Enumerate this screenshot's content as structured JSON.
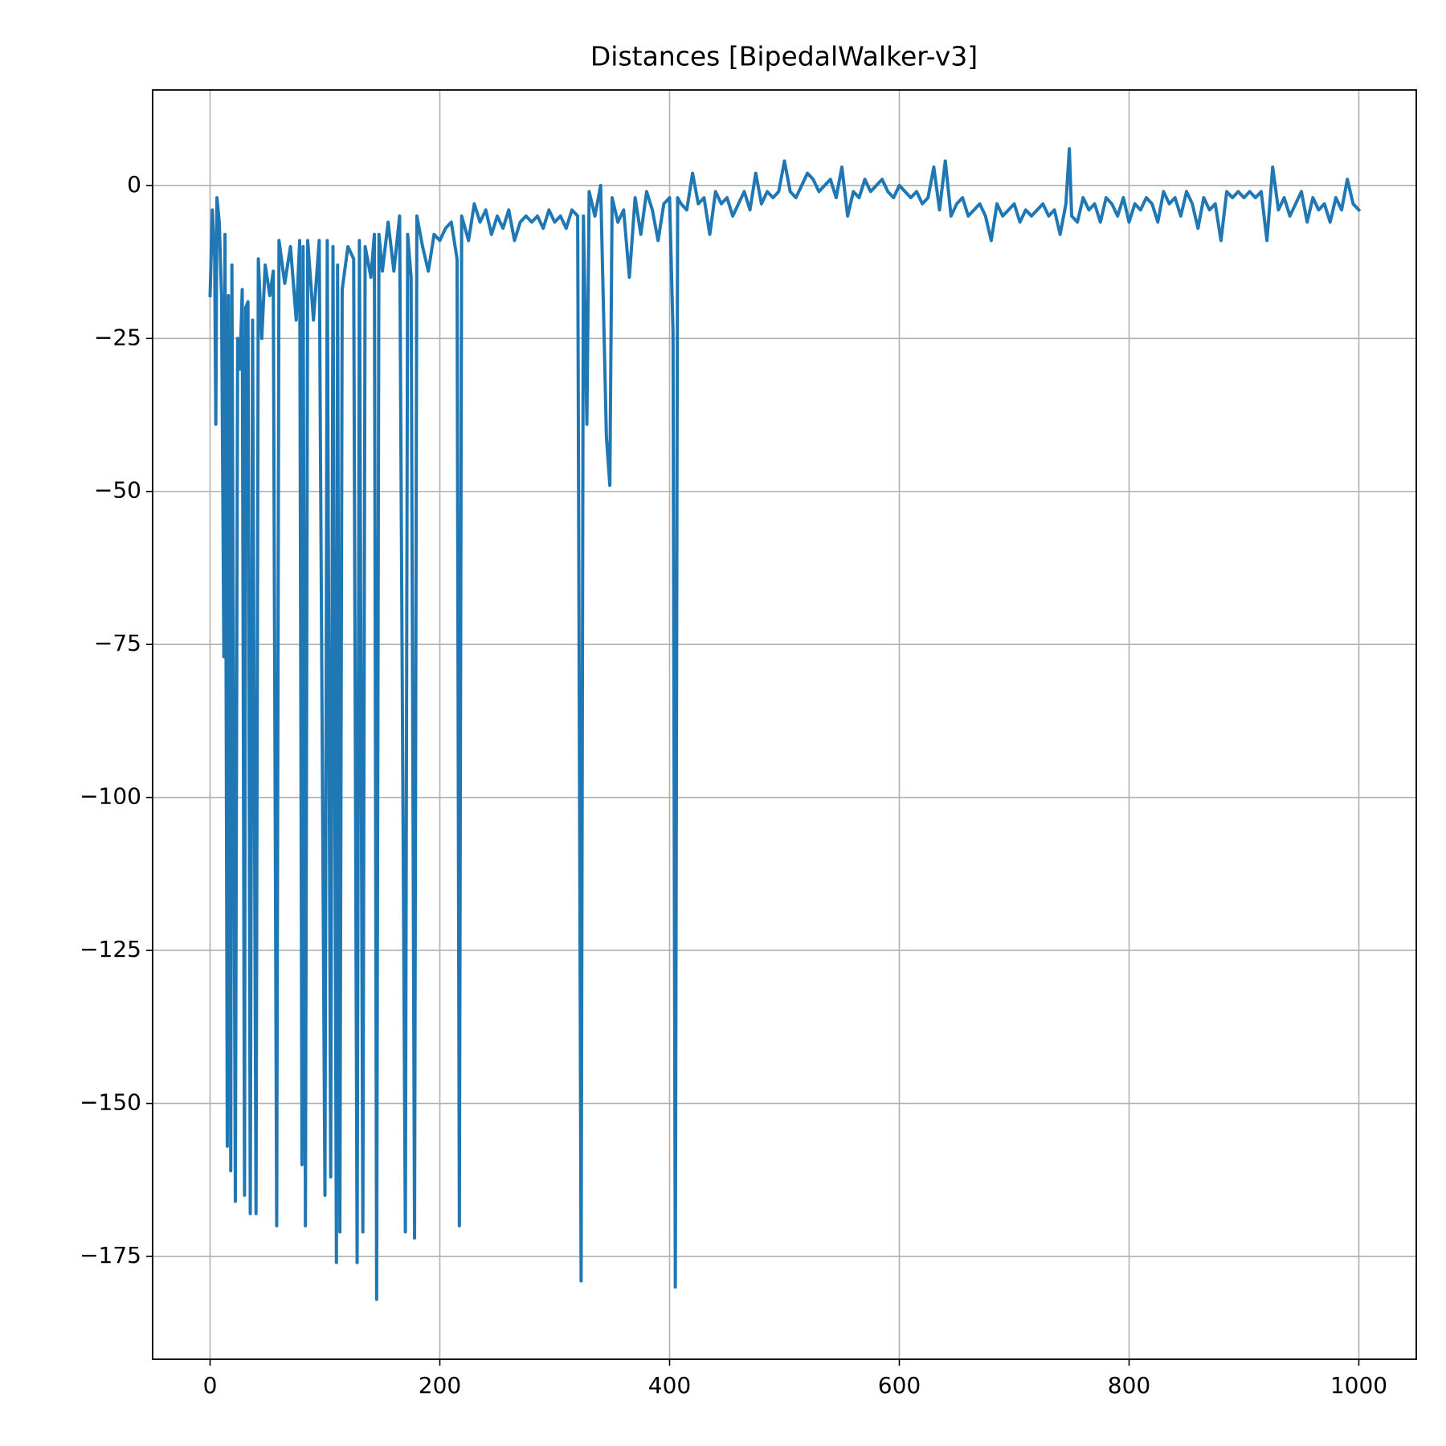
{
  "chart_data": {
    "type": "line",
    "title": "Distances [BipedalWalker-v3]",
    "x": [
      0,
      2,
      4,
      5,
      6,
      8,
      10,
      12,
      13,
      15,
      16,
      18,
      19,
      22,
      24,
      26,
      28,
      30,
      31,
      33,
      35,
      37,
      40,
      42,
      45,
      48,
      52,
      55,
      58,
      60,
      65,
      70,
      75,
      78,
      80,
      81,
      83,
      85,
      90,
      95,
      100,
      102,
      105,
      107,
      110,
      111,
      113,
      115,
      120,
      125,
      128,
      130,
      133,
      135,
      140,
      143,
      145,
      147,
      150,
      155,
      160,
      165,
      170,
      172,
      175,
      178,
      180,
      185,
      190,
      195,
      200,
      205,
      210,
      215,
      217,
      219,
      225,
      230,
      235,
      240,
      245,
      250,
      255,
      260,
      265,
      270,
      275,
      280,
      285,
      290,
      295,
      300,
      305,
      310,
      315,
      320,
      323,
      325,
      328,
      330,
      335,
      340,
      345,
      348,
      350,
      355,
      360,
      365,
      370,
      375,
      380,
      385,
      390,
      395,
      400,
      403,
      405,
      407,
      410,
      415,
      420,
      425,
      430,
      435,
      440,
      445,
      450,
      455,
      460,
      465,
      470,
      475,
      480,
      485,
      490,
      495,
      500,
      505,
      510,
      515,
      520,
      525,
      530,
      535,
      540,
      545,
      550,
      555,
      560,
      565,
      570,
      575,
      580,
      585,
      590,
      595,
      600,
      605,
      610,
      615,
      620,
      625,
      630,
      635,
      640,
      645,
      650,
      655,
      660,
      665,
      670,
      675,
      680,
      685,
      690,
      695,
      700,
      705,
      710,
      715,
      720,
      725,
      730,
      735,
      740,
      745,
      748,
      750,
      755,
      760,
      765,
      770,
      775,
      780,
      785,
      790,
      795,
      800,
      805,
      810,
      815,
      820,
      825,
      830,
      835,
      840,
      845,
      850,
      855,
      860,
      865,
      870,
      875,
      880,
      885,
      890,
      895,
      900,
      905,
      910,
      915,
      920,
      925,
      930,
      935,
      940,
      945,
      950,
      955,
      960,
      965,
      970,
      975,
      980,
      985,
      990,
      995,
      1000
    ],
    "values": [
      -18,
      -4,
      -12,
      -39,
      -2,
      -6,
      -18,
      -77,
      -8,
      -157,
      -18,
      -161,
      -13,
      -166,
      -25,
      -30,
      -17,
      -165,
      -20,
      -19,
      -168,
      -22,
      -168,
      -12,
      -25,
      -13,
      -18,
      -14,
      -170,
      -9,
      -16,
      -10,
      -22,
      -9,
      -160,
      -10,
      -170,
      -9,
      -22,
      -9,
      -165,
      -9,
      -162,
      -10,
      -176,
      -13,
      -171,
      -17,
      -10,
      -12,
      -176,
      -9,
      -171,
      -10,
      -15,
      -8,
      -182,
      -8,
      -14,
      -6,
      -14,
      -5,
      -171,
      -8,
      -15,
      -172,
      -5,
      -10,
      -14,
      -8,
      -9,
      -7,
      -6,
      -12,
      -170,
      -5,
      -9,
      -3,
      -6,
      -4,
      -8,
      -5,
      -7,
      -4,
      -9,
      -6,
      -5,
      -6,
      -5,
      -7,
      -4,
      -6,
      -5,
      -7,
      -4,
      -5,
      -179,
      -5,
      -39,
      -1,
      -5,
      0,
      -41,
      -49,
      -2,
      -6,
      -4,
      -15,
      -2,
      -8,
      -1,
      -4,
      -9,
      -3,
      -2,
      -24,
      -180,
      -2,
      -3,
      -4,
      2,
      -3,
      -2,
      -8,
      -1,
      -3,
      -2,
      -5,
      -3,
      -1,
      -4,
      2,
      -3,
      -1,
      -2,
      -1,
      4,
      -1,
      -2,
      0,
      2,
      1,
      -1,
      0,
      1,
      -2,
      3,
      -5,
      -1,
      -2,
      1,
      -1,
      0,
      1,
      -1,
      -2,
      0,
      -1,
      -2,
      -1,
      -3,
      -2,
      3,
      -4,
      4,
      -5,
      -3,
      -2,
      -5,
      -4,
      -3,
      -5,
      -9,
      -3,
      -5,
      -4,
      -3,
      -6,
      -4,
      -5,
      -4,
      -3,
      -5,
      -4,
      -8,
      -3,
      6,
      -5,
      -6,
      -2,
      -4,
      -3,
      -6,
      -2,
      -3,
      -5,
      -2,
      -6,
      -3,
      -4,
      -2,
      -3,
      -6,
      -1,
      -3,
      -2,
      -5,
      -1,
      -3,
      -7,
      -2,
      -4,
      -3,
      -9,
      -1,
      -2,
      -1,
      -2,
      -1,
      -2,
      -1,
      -9,
      3,
      -4,
      -2,
      -5,
      -3,
      -1,
      -6,
      -2,
      -4,
      -3,
      -6,
      -2,
      -4,
      1,
      -3,
      -4
    ],
    "color": "#1f77b4",
    "xlim": [
      -50,
      1050
    ],
    "ylim": [
      -191.8,
      15.6
    ],
    "xticks": [
      0,
      200,
      400,
      600,
      800,
      1000
    ],
    "yticks": [
      0,
      {
        "value": -25,
        "label": "−25"
      },
      {
        "value": -50,
        "label": "−50"
      },
      {
        "value": -75,
        "label": "−75"
      },
      {
        "value": -100,
        "label": "−100"
      },
      {
        "value": -125,
        "label": "−125"
      },
      {
        "value": -150,
        "label": "−150"
      },
      {
        "value": -175,
        "label": "−175"
      }
    ],
    "grid": true
  }
}
